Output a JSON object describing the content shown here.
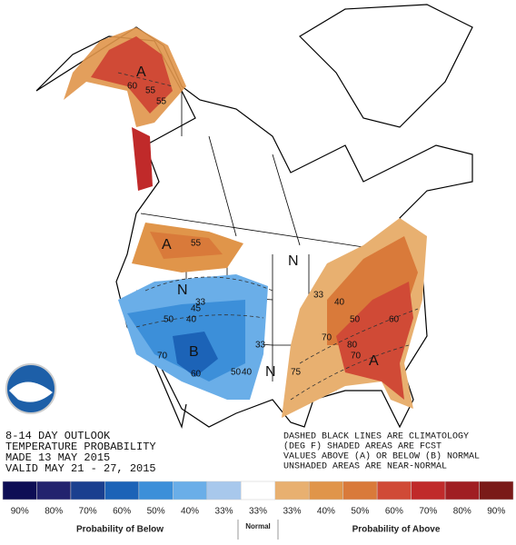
{
  "header": {
    "lines": [
      "8-14 DAY OUTLOOK",
      "TEMPERATURE PROBABILITY",
      "MADE  13 MAY 2015",
      "VALID  MAY 21 - 27, 2015"
    ]
  },
  "note": {
    "lines": [
      "DASHED BLACK LINES ARE CLIMATOLOGY",
      "(DEG F) SHADED AREAS ARE FCST",
      "VALUES ABOVE (A) OR BELOW (B) NORMAL",
      "UNSHADED AREAS ARE NEAR-NORMAL"
    ]
  },
  "map": {
    "labels": [
      "A",
      "60",
      "55",
      "55",
      "A",
      "55",
      "N",
      "N",
      "N",
      "33",
      "45",
      "40",
      "50",
      "B",
      "60",
      "70",
      "50",
      "40",
      "33",
      "33",
      "40",
      "50",
      "60",
      "70",
      "80",
      "70",
      "A",
      "75"
    ]
  },
  "legend": {
    "items": [
      {
        "label": "90%",
        "color": "#0d0d55"
      },
      {
        "label": "80%",
        "color": "#23236e"
      },
      {
        "label": "70%",
        "color": "#1a3f8f"
      },
      {
        "label": "60%",
        "color": "#1c63b7"
      },
      {
        "label": "50%",
        "color": "#3c8fd9"
      },
      {
        "label": "40%",
        "color": "#6aaee8"
      },
      {
        "label": "33%",
        "color": "#a8c8ec"
      },
      {
        "label": "33%",
        "color": "#ffffff"
      },
      {
        "label": "33%",
        "color": "#e8b070"
      },
      {
        "label": "40%",
        "color": "#e0954a"
      },
      {
        "label": "50%",
        "color": "#d97a3a"
      },
      {
        "label": "60%",
        "color": "#d04a36"
      },
      {
        "label": "70%",
        "color": "#c02a2a"
      },
      {
        "label": "80%",
        "color": "#a01e22"
      },
      {
        "label": "90%",
        "color": "#7a1a18"
      }
    ],
    "below_title": "Probability of Below",
    "normal_title": "Normal",
    "above_title": "Probability of Above"
  }
}
